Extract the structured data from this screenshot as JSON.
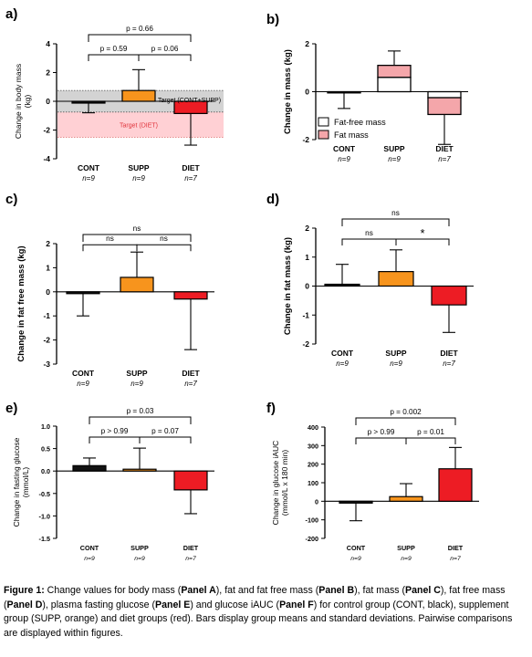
{
  "colors": {
    "CONT": "#111111",
    "SUPP": "#f7941d",
    "DIET": "#ed1c24",
    "fat_mass": "#f4a6aa",
    "target_grey": "#d3d3d3",
    "target_red": "#ffd0d4"
  },
  "panels": {
    "a": {
      "label": "a)"
    },
    "b": {
      "label": "b)"
    },
    "c": {
      "label": "c)"
    },
    "d": {
      "label": "d)"
    },
    "e": {
      "label": "e)"
    },
    "f": {
      "label": "f)"
    }
  },
  "chart_data": [
    {
      "id": "a",
      "type": "bar",
      "panel_label": "a)",
      "categories": [
        "CONT",
        "SUPP",
        "DIET"
      ],
      "n_labels": [
        "n=9",
        "n=9",
        "n=7"
      ],
      "values": [
        -0.05,
        0.75,
        -0.85
      ],
      "sd": [
        0.75,
        1.45,
        2.2
      ],
      "ylabel": [
        "Change in body mass",
        "(kg)"
      ],
      "ylabel_bold": false,
      "ylim": [
        -4,
        4
      ],
      "yticks": [
        -4,
        -2,
        0,
        2,
        4
      ],
      "target_bands": [
        {
          "range": [
            -0.75,
            0.75
          ],
          "label": "Target (CONT+SUPP)",
          "color": "target_grey"
        },
        {
          "range": [
            -2.5,
            -0.75
          ],
          "label": "Target (DIET)",
          "color": "target_red"
        }
      ],
      "comparisons": [
        {
          "from": 0,
          "to": 1,
          "label": "p = 0.59",
          "level": 1
        },
        {
          "from": 1,
          "to": 2,
          "label": "p = 0.06",
          "level": 1
        },
        {
          "from": 0,
          "to": 2,
          "label": "p = 0.66",
          "level": 2
        }
      ],
      "axis_scale": 1.0
    },
    {
      "id": "b",
      "type": "stacked bar",
      "panel_label": "b)",
      "categories": [
        "CONT",
        "SUPP",
        "DIET"
      ],
      "n_labels": [
        "n=9",
        "n=9",
        "n=7"
      ],
      "series": [
        {
          "name": "Fat-free mass",
          "values": [
            -0.05,
            0.6,
            -0.25
          ],
          "color": "#ffffff"
        },
        {
          "name": "Fat mass",
          "values": [
            0.0,
            0.5,
            -0.7
          ],
          "color": "fat_mass"
        }
      ],
      "totals": [
        -0.05,
        1.1,
        -0.95
      ],
      "sd": [
        0.65,
        0.6,
        1.25
      ],
      "ylabel": [
        "Change in mass (kg)"
      ],
      "ylabel_bold": true,
      "ylim": [
        -2,
        2
      ],
      "yticks": [
        -2,
        0,
        2
      ],
      "legend_position": "bottom-right",
      "axis_scale": 1.0
    },
    {
      "id": "c",
      "type": "bar",
      "panel_label": "c)",
      "categories": [
        "CONT",
        "SUPP",
        "DIET"
      ],
      "n_labels": [
        "n=9",
        "n=9",
        "n=7"
      ],
      "values": [
        -0.05,
        0.6,
        -0.3
      ],
      "sd": [
        0.95,
        1.05,
        2.1
      ],
      "ylabel": [
        "Change in fat free mass (kg)"
      ],
      "ylabel_bold": true,
      "ylim": [
        -3,
        2
      ],
      "yticks": [
        -3,
        -2,
        -1,
        0,
        1,
        2
      ],
      "comparisons": [
        {
          "from": 0,
          "to": 1,
          "label": "ns",
          "level": 1
        },
        {
          "from": 1,
          "to": 2,
          "label": "ns",
          "level": 1
        },
        {
          "from": 0,
          "to": 2,
          "label": "ns",
          "level": 2
        }
      ],
      "axis_scale": 1.0
    },
    {
      "id": "d",
      "type": "bar",
      "panel_label": "d)",
      "categories": [
        "CONT",
        "SUPP",
        "DIET"
      ],
      "n_labels": [
        "n=9",
        "n=9",
        "n=7"
      ],
      "values": [
        0.0,
        0.5,
        -0.65
      ],
      "sd": [
        0.75,
        0.75,
        0.95
      ],
      "ylabel": [
        "Change in fat mass (kg)"
      ],
      "ylabel_bold": true,
      "ylim": [
        -2,
        2
      ],
      "yticks": [
        -2,
        -1,
        0,
        1,
        2
      ],
      "comparisons": [
        {
          "from": 0,
          "to": 1,
          "label": "ns",
          "level": 1
        },
        {
          "from": 1,
          "to": 2,
          "label": "*",
          "level": 1
        },
        {
          "from": 0,
          "to": 2,
          "label": "ns",
          "level": 2
        }
      ],
      "axis_scale": 1.0
    },
    {
      "id": "e",
      "type": "bar",
      "panel_label": "e)",
      "categories": [
        "CONT",
        "SUPP",
        "DIET"
      ],
      "n_labels": [
        "n=9",
        "n=9",
        "n=7"
      ],
      "values": [
        0.12,
        0.03,
        -0.42
      ],
      "sd": [
        0.17,
        0.48,
        0.53
      ],
      "ylabel": [
        "Change in fasting glucose",
        "(mmol/L)"
      ],
      "ylabel_bold": false,
      "ylim": [
        -1.5,
        1.0
      ],
      "yticks": [
        -1.5,
        -1.0,
        -0.5,
        0.0,
        0.5,
        1.0
      ],
      "ytick_labels": [
        "-1.5",
        "-1.0",
        "-0.5",
        "0.0",
        "0.5",
        "1.0"
      ],
      "comparisons": [
        {
          "from": 0,
          "to": 1,
          "label": "p > 0.99",
          "level": 1
        },
        {
          "from": 1,
          "to": 2,
          "label": "p = 0.07",
          "level": 1
        },
        {
          "from": 0,
          "to": 2,
          "label": "p = 0.03",
          "level": 2
        }
      ],
      "axis_scale": 0.85
    },
    {
      "id": "f",
      "type": "bar",
      "panel_label": "f)",
      "categories": [
        "CONT",
        "SUPP",
        "DIET"
      ],
      "n_labels": [
        "n=9",
        "n=9",
        "n=7"
      ],
      "values": [
        -5,
        25,
        175
      ],
      "sd": [
        100,
        70,
        115
      ],
      "ylabel": [
        "Change in glucose iAUC",
        "(mmol/L x 180 min)"
      ],
      "ylabel_bold": false,
      "ylim": [
        -200,
        400
      ],
      "yticks": [
        -200,
        -100,
        0,
        100,
        200,
        300,
        400
      ],
      "comparisons": [
        {
          "from": 0,
          "to": 1,
          "label": "p > 0.99",
          "level": 1
        },
        {
          "from": 1,
          "to": 2,
          "label": "p = 0.01",
          "level": 1
        },
        {
          "from": 0,
          "to": 2,
          "label": "p = 0.002",
          "level": 2
        }
      ],
      "axis_scale": 0.85
    }
  ],
  "caption": [
    {
      "t": "Figure 1:",
      "b": true
    },
    {
      "t": " Change values for body mass (",
      "b": false
    },
    {
      "t": "Panel A",
      "b": true
    },
    {
      "t": "), fat and fat free mass (",
      "b": false
    },
    {
      "t": "Panel B",
      "b": true
    },
    {
      "t": "), fat mass (",
      "b": false
    },
    {
      "t": "Panel C",
      "b": true
    },
    {
      "t": "), fat free mass (",
      "b": false
    },
    {
      "t": "Panel D",
      "b": true
    },
    {
      "t": "), plasma fasting glucose (",
      "b": false
    },
    {
      "t": "Panel E",
      "b": true
    },
    {
      "t": ") and glucose iAUC (",
      "b": false
    },
    {
      "t": "Panel F",
      "b": true
    },
    {
      "t": ") for control group (CONT, black), supplement group (SUPP, orange) and diet groups (red). Bars display group means and standard deviations. Pairwise comparisons are displayed within figures.",
      "b": false
    }
  ]
}
